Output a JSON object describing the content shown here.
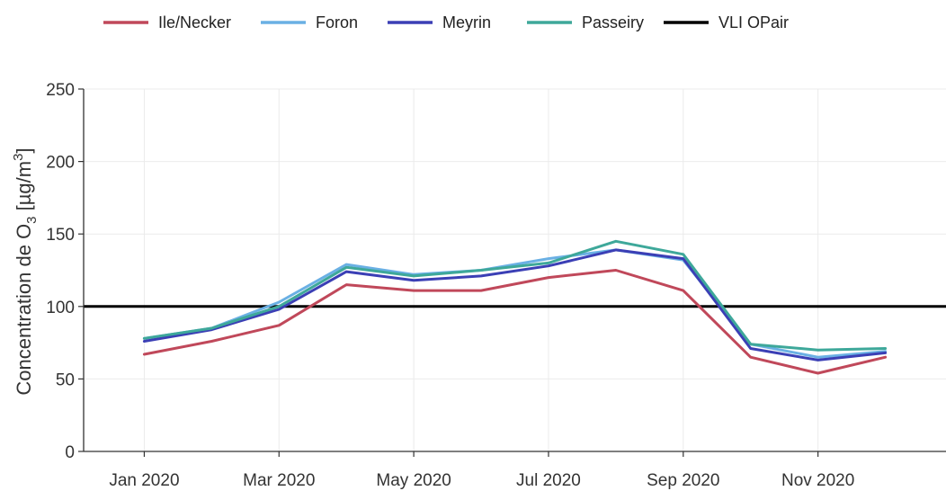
{
  "chart_data": {
    "type": "line",
    "ylabel_text": "Concentration de O",
    "ylabel_sub": "3",
    "ylabel_unit_open": " [µg/m",
    "ylabel_sup": "3",
    "ylabel_unit_close": "]",
    "ylim": [
      0,
      250
    ],
    "yticks": [
      0,
      50,
      100,
      150,
      200,
      250
    ],
    "x_ticks": [
      {
        "label": "Jan 2020",
        "month": 0
      },
      {
        "label": "Mar 2020",
        "month": 2
      },
      {
        "label": "May 2020",
        "month": 4
      },
      {
        "label": "Jul 2020",
        "month": 6
      },
      {
        "label": "Sep 2020",
        "month": 8
      },
      {
        "label": "Nov 2020",
        "month": 10
      }
    ],
    "x_months": [
      "Jan 2020",
      "Feb 2020",
      "Mar 2020",
      "Apr 2020",
      "May 2020",
      "Jun 2020",
      "Jul 2020",
      "Aug 2020",
      "Sep 2020",
      "Oct 2020",
      "Nov 2020",
      "Dec 2020"
    ],
    "x_range_months": [
      -0.9,
      11.9
    ],
    "grid": true,
    "legend_position": "top",
    "series": [
      {
        "name": "Ile/Necker",
        "color": "#c0485a",
        "values": [
          67,
          76,
          87,
          115,
          111,
          111,
          120,
          125,
          111,
          65,
          54,
          65
        ]
      },
      {
        "name": "Foron",
        "color": "#6ab0e4",
        "values": [
          78,
          85,
          103,
          129,
          122,
          125,
          133,
          139,
          132,
          74,
          65,
          69
        ]
      },
      {
        "name": "Meyrin",
        "color": "#3b3fb5",
        "values": [
          76,
          84,
          98,
          124,
          118,
          121,
          128,
          139,
          133,
          71,
          63,
          68
        ]
      },
      {
        "name": "Passeiry",
        "color": "#3ea89a",
        "values": [
          78,
          85,
          100,
          127,
          121,
          125,
          130,
          145,
          136,
          74,
          70,
          71
        ]
      }
    ],
    "reference_lines": [
      {
        "name": "VLI OPair",
        "color": "#000000",
        "value": 100
      }
    ]
  }
}
